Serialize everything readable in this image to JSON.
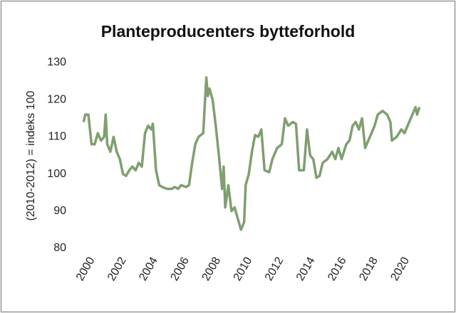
{
  "chart_data": {
    "type": "line",
    "title": "Planteproducenters bytteforhold",
    "y_label": "(2010-2012) = indeks 100",
    "x": [
      2000.0,
      2000.1,
      2000.3,
      2000.5,
      2000.7,
      2000.9,
      2001.1,
      2001.3,
      2001.4,
      2001.5,
      2001.7,
      2001.9,
      2002.1,
      2002.3,
      2002.5,
      2002.7,
      2002.9,
      2003.1,
      2003.3,
      2003.5,
      2003.7,
      2003.9,
      2004.1,
      2004.3,
      2004.4,
      2004.6,
      2004.8,
      2005.0,
      2005.3,
      2005.6,
      2005.8,
      2006.0,
      2006.2,
      2006.5,
      2006.7,
      2006.9,
      2007.1,
      2007.3,
      2007.6,
      2007.8,
      2007.9,
      2008.0,
      2008.2,
      2008.4,
      2008.6,
      2008.8,
      2008.9,
      2009.0,
      2009.2,
      2009.4,
      2009.6,
      2009.8,
      2010.0,
      2010.2,
      2010.3,
      2010.5,
      2010.7,
      2010.9,
      2011.1,
      2011.3,
      2011.5,
      2011.8,
      2012.0,
      2012.3,
      2012.6,
      2012.8,
      2013.0,
      2013.3,
      2013.5,
      2013.7,
      2014.0,
      2014.2,
      2014.4,
      2014.6,
      2014.8,
      2015.0,
      2015.2,
      2015.5,
      2015.8,
      2016.0,
      2016.2,
      2016.4,
      2016.7,
      2016.9,
      2017.1,
      2017.3,
      2017.5,
      2017.7,
      2017.9,
      2018.1,
      2018.3,
      2018.5,
      2018.7,
      2019.0,
      2019.3,
      2019.5,
      2019.6,
      2019.9,
      2020.2,
      2020.4,
      2020.6,
      2020.9,
      2021.1,
      2021.2,
      2021.35
    ],
    "series": [
      {
        "color": "#7f9f6f",
        "values": [
          114,
          116,
          116,
          108,
          108,
          111,
          109,
          110,
          116,
          108,
          106,
          110,
          106,
          104,
          100,
          99.5,
          101,
          102,
          101,
          103,
          102,
          111,
          113,
          112,
          113.5,
          101,
          97,
          96.5,
          96,
          96,
          96.5,
          96,
          97,
          96.5,
          97,
          103,
          108,
          110,
          111,
          126,
          121,
          123,
          120,
          113,
          105,
          96,
          102,
          91,
          97,
          90,
          91,
          88,
          85,
          87,
          97,
          100,
          106,
          110.5,
          110,
          112,
          101,
          100.5,
          104,
          107,
          108,
          115,
          113,
          114,
          113.5,
          101,
          101,
          112,
          105,
          104,
          99,
          99.5,
          103,
          104,
          106,
          104,
          107,
          104,
          108,
          109,
          113,
          114,
          112,
          115,
          107,
          109,
          111,
          113,
          116,
          117,
          116,
          114,
          109,
          110,
          112,
          111,
          113,
          116,
          118,
          116,
          118
        ]
      }
    ],
    "xlim": [
      1999.8,
      2021.5
    ],
    "xticks": [
      2000,
      2002,
      2004,
      2006,
      2008,
      2010,
      2012,
      2014,
      2016,
      2018,
      2020
    ],
    "ylim": [
      80,
      130
    ],
    "yticks": [
      80,
      90,
      100,
      110,
      120,
      130
    ]
  }
}
